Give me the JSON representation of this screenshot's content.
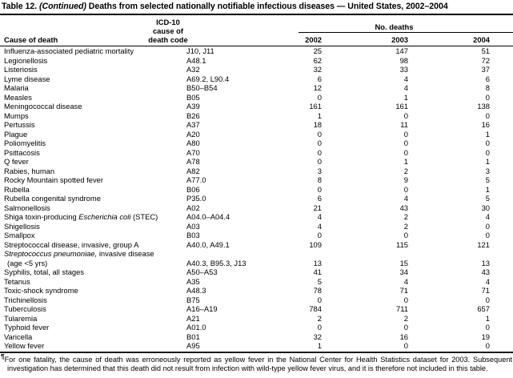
{
  "title": {
    "prefix": "Table 12. ",
    "continued": "(Continued)",
    "rest": " Deaths from selected nationally notifiable infectious diseases — United States, 2002–2004"
  },
  "header": {
    "cause_label": "Cause of death",
    "icd_line1": "ICD-10",
    "icd_line2": "cause of",
    "icd_line3": "death code",
    "no_deaths_label": "No. deaths",
    "years": [
      "2002",
      "2003",
      "2004"
    ]
  },
  "table": {
    "rows": [
      {
        "cause": "Influenza-associated pediatric mortality",
        "code": "J10, J11",
        "values": [
          "25",
          "147",
          "51"
        ]
      },
      {
        "cause": "Legionellosis",
        "code": "A48.1",
        "values": [
          "62",
          "98",
          "72"
        ]
      },
      {
        "cause": "Listeriosis",
        "code": "A32",
        "values": [
          "32",
          "33",
          "37"
        ]
      },
      {
        "cause": "Lyme disease",
        "code": "A69.2, L90.4",
        "values": [
          "6",
          "4",
          "6"
        ]
      },
      {
        "cause": "Malaria",
        "code": "B50–B54",
        "values": [
          "12",
          "4",
          "8"
        ]
      },
      {
        "cause": "Measles",
        "code": "B05",
        "values": [
          "0",
          "1",
          "0"
        ]
      },
      {
        "cause": "Meningococcal disease",
        "code": "A39",
        "values": [
          "161",
          "161",
          "138"
        ]
      },
      {
        "cause": "Mumps",
        "code": "B26",
        "values": [
          "1",
          "0",
          "0"
        ]
      },
      {
        "cause": "Pertussis",
        "code": "A37",
        "values": [
          "18",
          "11",
          "16"
        ]
      },
      {
        "cause": "Plague",
        "code": "A20",
        "values": [
          "0",
          "0",
          "1"
        ]
      },
      {
        "cause": "Poliomyelitis",
        "code": "A80",
        "values": [
          "0",
          "0",
          "0"
        ]
      },
      {
        "cause": "Psittacosis",
        "code": "A70",
        "values": [
          "0",
          "0",
          "0"
        ]
      },
      {
        "cause": "Q fever",
        "code": "A78",
        "values": [
          "0",
          "1",
          "1"
        ]
      },
      {
        "cause": "Rabies, human",
        "code": "A82",
        "values": [
          "3",
          "2",
          "3"
        ]
      },
      {
        "cause": "Rocky Mountain spotted fever",
        "code": "A77.0",
        "values": [
          "8",
          "9",
          "5"
        ]
      },
      {
        "cause": "Rubella",
        "code": "B06",
        "values": [
          "0",
          "0",
          "1"
        ]
      },
      {
        "cause": "Rubella congenital syndrome",
        "code": "P35.0",
        "values": [
          "6",
          "4",
          "5"
        ]
      },
      {
        "cause": "Salmonellosis",
        "code": "A02",
        "values": [
          "21",
          "43",
          "30"
        ]
      },
      {
        "cause": [
          {
            "text": "Shiga toxin-producing "
          },
          {
            "text": "Escherichia coli",
            "italic": true
          },
          {
            "text": " (STEC)"
          }
        ],
        "code": "A04.0–A04.4",
        "values": [
          "4",
          "2",
          "4"
        ]
      },
      {
        "cause": "Shigellosis",
        "code": "A03",
        "values": [
          "4",
          "2",
          "0"
        ]
      },
      {
        "cause": "Smallpox",
        "code": "B03",
        "values": [
          "0",
          "0",
          "0"
        ]
      },
      {
        "cause": "Streptococcal disease, invasive, group A",
        "code": "A40.0, A49.1",
        "values": [
          "109",
          "115",
          "121"
        ]
      },
      {
        "cause": [
          {
            "text": "Streptococcus pneumoniae,",
            "italic": true
          },
          {
            "text": " invasive disease"
          }
        ],
        "code": "",
        "values": [
          "",
          "",
          ""
        ]
      },
      {
        "cause": "(age <5 yrs)",
        "indent": true,
        "code": "A40.3, B95.3, J13",
        "values": [
          "13",
          "15",
          "13"
        ]
      },
      {
        "cause": "Syphilis, total, all stages",
        "code": "A50–A53",
        "values": [
          "41",
          "34",
          "43"
        ]
      },
      {
        "cause": "Tetanus",
        "code": "A35",
        "values": [
          "5",
          "4",
          "4"
        ]
      },
      {
        "cause": "Toxic-shock syndrome",
        "code": "A48.3",
        "values": [
          "78",
          "71",
          "71"
        ]
      },
      {
        "cause": "Trichinellosis",
        "code": "B75",
        "values": [
          "0",
          "0",
          "0"
        ]
      },
      {
        "cause": "Tuberculosis",
        "code": "A16–A19",
        "values": [
          "784",
          "711",
          "657"
        ]
      },
      {
        "cause": "Tularemia",
        "code": "A21",
        "values": [
          "2",
          "2",
          "1"
        ]
      },
      {
        "cause": "Typhoid fever",
        "code": "A01.0",
        "values": [
          "0",
          "0",
          "0"
        ]
      },
      {
        "cause": "Varicella",
        "code": "B01",
        "values": [
          "32",
          "16",
          "19"
        ]
      },
      {
        "cause": "Yellow fever",
        "code": "A95",
        "values": [
          "1",
          "0",
          "0"
        ]
      }
    ]
  },
  "footnote": {
    "marker": "¶",
    "text": "For one fatality, the cause of death was erroneously reported as yellow fever in the National Center for Health Statistics dataset for 2003. Subsequent investigation has determined that this death did not result from infection with wild-type yellow fever virus, and it is therefore not included in this table."
  }
}
